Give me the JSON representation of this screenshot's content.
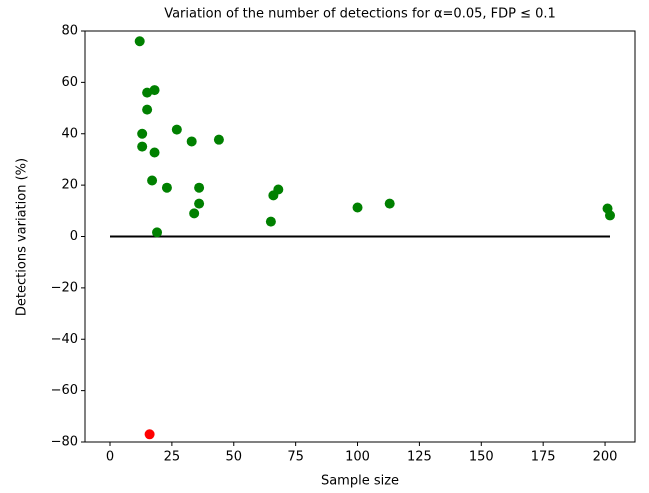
{
  "chart_data": {
    "type": "scatter",
    "title": "Variation of the number of detections for α=0.05, FDP ≤ 0.1",
    "xlabel": "Sample size",
    "ylabel": "Detections variation (%)",
    "x": [
      12,
      15,
      18,
      15,
      13,
      13,
      18,
      27,
      33,
      44,
      17,
      23,
      36,
      36,
      34,
      19,
      65,
      66,
      68,
      100,
      113,
      201,
      202,
      16
    ],
    "values": [
      76,
      56,
      57,
      49.4,
      40,
      35,
      32.7,
      41.6,
      37,
      37.7,
      21.8,
      19,
      19,
      12.8,
      9,
      1.6,
      5.8,
      16,
      18.3,
      11.3,
      12.8,
      10.9,
      8.2,
      -77
    ],
    "colors": [
      "#008000",
      "#008000",
      "#008000",
      "#008000",
      "#008000",
      "#008000",
      "#008000",
      "#008000",
      "#008000",
      "#008000",
      "#008000",
      "#008000",
      "#008000",
      "#008000",
      "#008000",
      "#008000",
      "#008000",
      "#008000",
      "#008000",
      "#008000",
      "#008000",
      "#008000",
      "#008000",
      "#ff0000"
    ],
    "reference_line": {
      "y": 0,
      "xmin": 0,
      "xmax": 202,
      "color": "#000000"
    },
    "xlim": [
      -10.1,
      212.1
    ],
    "ylim": [
      -80,
      80
    ],
    "xticks": [
      0,
      25,
      50,
      75,
      100,
      125,
      150,
      175,
      200
    ],
    "yticks": [
      {
        "value": -80,
        "label": "−80"
      },
      {
        "value": -60,
        "label": "−60"
      },
      {
        "value": -40,
        "label": "−40"
      },
      {
        "value": -20,
        "label": "−20"
      },
      0,
      20,
      40,
      60,
      80
    ]
  }
}
